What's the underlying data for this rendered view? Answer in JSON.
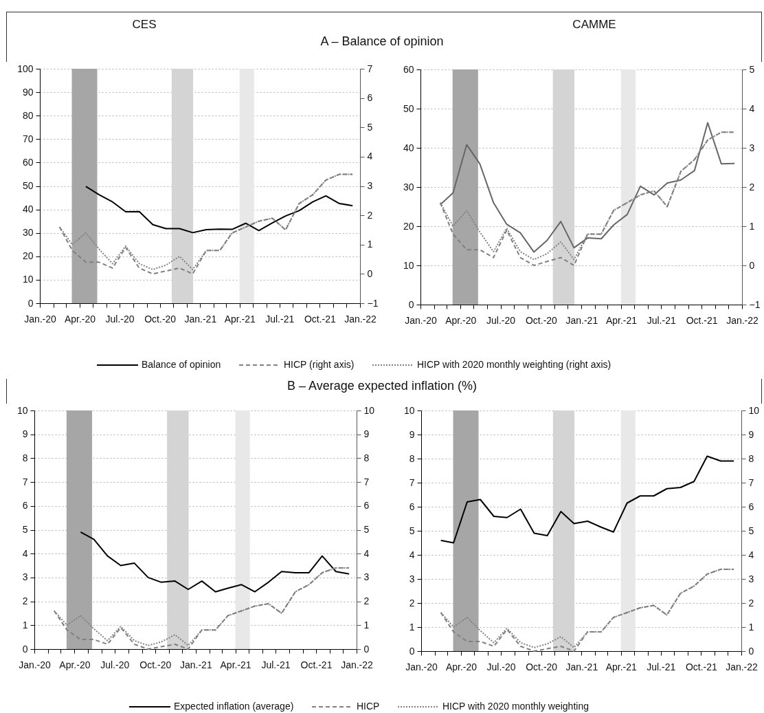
{
  "chart_data": [
    {
      "type": "line",
      "title": "CES",
      "subtitle": "A – Balance of opinion",
      "legend": "bottom",
      "grid": "y",
      "x": [
        "2020-02-15",
        "2020-03-15",
        "2020-04-15",
        "2020-05-15",
        "2020-06-15",
        "2020-07-15",
        "2020-08-15",
        "2020-09-15",
        "2020-10-15",
        "2020-11-15",
        "2020-12-15",
        "2021-01-15",
        "2021-02-15",
        "2021-03-15",
        "2021-04-15",
        "2021-05-15",
        "2021-06-15",
        "2021-07-15",
        "2021-08-15",
        "2021-09-15",
        "2021-10-15",
        "2021-11-15",
        "2021-12-15"
      ],
      "xlim": [
        "2020-01-01",
        "2022-01-01"
      ],
      "xticks": [
        {
          "value": "2020-01-01",
          "label": "Jan.-20"
        },
        {
          "value": "2020-02-01",
          "label": null
        },
        {
          "value": "2020-03-01",
          "label": null
        },
        {
          "value": "2020-04-01",
          "label": "Apr.-20"
        },
        {
          "value": "2020-05-01",
          "label": null
        },
        {
          "value": "2020-06-01",
          "label": null
        },
        {
          "value": "2020-07-01",
          "label": "Jul.-20"
        },
        {
          "value": "2020-08-01",
          "label": null
        },
        {
          "value": "2020-09-01",
          "label": null
        },
        {
          "value": "2020-10-01",
          "label": "Oct.-20"
        },
        {
          "value": "2020-11-01",
          "label": null
        },
        {
          "value": "2020-12-01",
          "label": null
        },
        {
          "value": "2021-01-01",
          "label": "Jan.-21"
        },
        {
          "value": "2021-02-01",
          "label": null
        },
        {
          "value": "2021-03-01",
          "label": null
        },
        {
          "value": "2021-04-01",
          "label": "Apr.-21"
        },
        {
          "value": "2021-05-01",
          "label": null
        },
        {
          "value": "2021-06-01",
          "label": null
        },
        {
          "value": "2021-07-01",
          "label": "Jul.-21"
        },
        {
          "value": "2021-08-01",
          "label": null
        },
        {
          "value": "2021-09-01",
          "label": null
        },
        {
          "value": "2021-10-01",
          "label": "Oct.-21"
        },
        {
          "value": "2021-11-01",
          "label": null
        },
        {
          "value": "2021-12-01",
          "label": null
        },
        {
          "value": "2022-01-01",
          "label": "Jan.-22"
        }
      ],
      "ylim": [
        0,
        100
      ],
      "yticks": [
        0,
        10,
        20,
        30,
        40,
        50,
        60,
        70,
        80,
        90,
        100
      ],
      "y2lim": [
        -1,
        7
      ],
      "y2ticks": [
        -1,
        0,
        1,
        2,
        3,
        4,
        5,
        6,
        7
      ],
      "bands": [
        {
          "axis": "x",
          "from": "2020-03-14",
          "to": "2020-05-11",
          "color": "#a6a6a6"
        },
        {
          "axis": "x",
          "from": "2020-10-28",
          "to": "2020-12-16",
          "color": "#d4d4d4"
        },
        {
          "axis": "x",
          "from": "2021-04-01",
          "to": "2021-05-04",
          "color": "#e8e8e8"
        }
      ],
      "series": [
        {
          "name": "Balance of opinion",
          "color": "#000000",
          "line_style": "solid",
          "values": [
            null,
            null,
            49.8,
            46.3,
            43.2,
            39.0,
            39.1,
            33.5,
            31.8,
            31.8,
            30.1,
            31.4,
            31.6,
            31.5,
            34.1,
            31.0,
            34.3,
            37.2,
            39.5,
            43.2,
            45.8,
            42.5,
            41.6
          ]
        },
        {
          "name": "HICP (right axis)",
          "color": "#7f7f7f",
          "line_style": "dashed",
          "axis": "y2",
          "values": [
            1.6,
            0.8,
            0.4,
            0.4,
            0.2,
            0.9,
            0.2,
            0.0,
            0.1,
            0.2,
            0.0,
            0.8,
            0.8,
            1.4,
            1.6,
            1.8,
            1.9,
            1.5,
            2.4,
            2.7,
            3.2,
            3.4,
            3.4
          ]
        },
        {
          "name": "HICP with 2020 monthly weighting (right axis)",
          "color": "#808080",
          "line_style": "dotted",
          "axis": "y2",
          "values": [
            1.6,
            1.0,
            1.4,
            0.85,
            0.35,
            0.95,
            0.35,
            0.15,
            0.3,
            0.6,
            0.15,
            0.8,
            0.8,
            1.4,
            1.6,
            1.8,
            1.9,
            1.5,
            2.4,
            2.7,
            3.2,
            3.4,
            3.4
          ]
        }
      ]
    },
    {
      "type": "line",
      "title": "CAMME",
      "grid": "y",
      "x": [
        "2020-02-15",
        "2020-03-15",
        "2020-04-15",
        "2020-05-15",
        "2020-06-15",
        "2020-07-15",
        "2020-08-15",
        "2020-09-15",
        "2020-10-15",
        "2020-11-15",
        "2020-12-15",
        "2021-01-15",
        "2021-02-15",
        "2021-03-15",
        "2021-04-15",
        "2021-05-15",
        "2021-06-15",
        "2021-07-15",
        "2021-08-15",
        "2021-09-15",
        "2021-10-15",
        "2021-11-15",
        "2021-12-15"
      ],
      "xlim": [
        "2020-01-01",
        "2022-01-01"
      ],
      "xticks": [
        {
          "value": "2020-01-01",
          "label": "Jan.-20"
        },
        {
          "value": "2020-02-01",
          "label": null
        },
        {
          "value": "2020-03-01",
          "label": null
        },
        {
          "value": "2020-04-01",
          "label": "Apr.-20"
        },
        {
          "value": "2020-05-01",
          "label": null
        },
        {
          "value": "2020-06-01",
          "label": null
        },
        {
          "value": "2020-07-01",
          "label": "Jul.-20"
        },
        {
          "value": "2020-08-01",
          "label": null
        },
        {
          "value": "2020-09-01",
          "label": null
        },
        {
          "value": "2020-10-01",
          "label": "Oct.-20"
        },
        {
          "value": "2020-11-01",
          "label": null
        },
        {
          "value": "2020-12-01",
          "label": null
        },
        {
          "value": "2021-01-01",
          "label": "Jan.-21"
        },
        {
          "value": "2021-02-01",
          "label": null
        },
        {
          "value": "2021-03-01",
          "label": null
        },
        {
          "value": "2021-04-01",
          "label": "Apr.-21"
        },
        {
          "value": "2021-05-01",
          "label": null
        },
        {
          "value": "2021-06-01",
          "label": null
        },
        {
          "value": "2021-07-01",
          "label": "Jul.-21"
        },
        {
          "value": "2021-08-01",
          "label": null
        },
        {
          "value": "2021-09-01",
          "label": null
        },
        {
          "value": "2021-10-01",
          "label": "Oct.-21"
        },
        {
          "value": "2021-11-01",
          "label": null
        },
        {
          "value": "2021-12-01",
          "label": null
        },
        {
          "value": "2022-01-01",
          "label": "Jan.-22"
        }
      ],
      "ylim": [
        0,
        60
      ],
      "yticks": [
        0,
        10,
        20,
        30,
        40,
        50,
        60
      ],
      "y2lim": [
        -1,
        5
      ],
      "y2ticks": [
        -1,
        0,
        1,
        2,
        3,
        4,
        5
      ],
      "bands": [
        {
          "axis": "x",
          "from": "2020-03-14",
          "to": "2020-05-11",
          "color": "#a6a6a6"
        },
        {
          "axis": "x",
          "from": "2020-10-28",
          "to": "2020-12-16",
          "color": "#d4d4d4"
        },
        {
          "axis": "x",
          "from": "2021-04-01",
          "to": "2021-05-04",
          "color": "#e8e8e8"
        }
      ],
      "series": [
        {
          "color": "#666666",
          "line_style": "solid",
          "values": [
            25.5,
            28.5,
            40.8,
            35.9,
            26.0,
            20.5,
            18.3,
            13.4,
            16.4,
            21.2,
            14.5,
            17.0,
            16.8,
            20.3,
            23.0,
            30.2,
            28.0,
            31.0,
            31.8,
            34.2,
            46.4,
            35.9,
            36.0
          ]
        },
        {
          "color": "#7f7f7f",
          "line_style": "dashed",
          "axis": "y2",
          "values": [
            1.6,
            0.8,
            0.4,
            0.4,
            0.2,
            0.9,
            0.2,
            0.0,
            0.1,
            0.2,
            0.0,
            0.8,
            0.8,
            1.4,
            1.6,
            1.8,
            1.9,
            1.5,
            2.4,
            2.7,
            3.2,
            3.4,
            3.4
          ]
        },
        {
          "color": "#808080",
          "line_style": "dotted",
          "axis": "y2",
          "values": [
            1.6,
            1.0,
            1.4,
            0.85,
            0.35,
            0.95,
            0.35,
            0.15,
            0.3,
            0.6,
            0.15,
            0.8,
            0.8,
            1.4,
            1.6,
            1.8,
            1.9,
            1.5,
            2.4,
            2.7,
            3.2,
            3.4,
            3.4
          ]
        }
      ]
    },
    {
      "type": "line",
      "subtitle": "B – Average expected inflation (%)",
      "legend": "bottom",
      "grid": "y",
      "x": [
        "2020-02-15",
        "2020-03-15",
        "2020-04-15",
        "2020-05-15",
        "2020-06-15",
        "2020-07-15",
        "2020-08-15",
        "2020-09-15",
        "2020-10-15",
        "2020-11-15",
        "2020-12-15",
        "2021-01-15",
        "2021-02-15",
        "2021-03-15",
        "2021-04-15",
        "2021-05-15",
        "2021-06-15",
        "2021-07-15",
        "2021-08-15",
        "2021-09-15",
        "2021-10-15",
        "2021-11-15",
        "2021-12-15"
      ],
      "xlim": [
        "2020-01-01",
        "2022-01-01"
      ],
      "xticks": [
        {
          "value": "2020-01-01",
          "label": "Jan.-20"
        },
        {
          "value": "2020-02-01",
          "label": null
        },
        {
          "value": "2020-03-01",
          "label": null
        },
        {
          "value": "2020-04-01",
          "label": "Apr.-20"
        },
        {
          "value": "2020-05-01",
          "label": null
        },
        {
          "value": "2020-06-01",
          "label": null
        },
        {
          "value": "2020-07-01",
          "label": "Jul.-20"
        },
        {
          "value": "2020-08-01",
          "label": null
        },
        {
          "value": "2020-09-01",
          "label": null
        },
        {
          "value": "2020-10-01",
          "label": "Oct.-20"
        },
        {
          "value": "2020-11-01",
          "label": null
        },
        {
          "value": "2020-12-01",
          "label": null
        },
        {
          "value": "2021-01-01",
          "label": "Jan.-21"
        },
        {
          "value": "2021-02-01",
          "label": null
        },
        {
          "value": "2021-03-01",
          "label": null
        },
        {
          "value": "2021-04-01",
          "label": "Apr.-21"
        },
        {
          "value": "2021-05-01",
          "label": null
        },
        {
          "value": "2021-06-01",
          "label": null
        },
        {
          "value": "2021-07-01",
          "label": "Jul.-21"
        },
        {
          "value": "2021-08-01",
          "label": null
        },
        {
          "value": "2021-09-01",
          "label": null
        },
        {
          "value": "2021-10-01",
          "label": "Oct.-21"
        },
        {
          "value": "2021-11-01",
          "label": null
        },
        {
          "value": "2021-12-01",
          "label": null
        },
        {
          "value": "2022-01-01",
          "label": "Jan.-22"
        }
      ],
      "ylim": [
        0,
        10
      ],
      "yticks": [
        0,
        1,
        2,
        3,
        4,
        5,
        6,
        7,
        8,
        9,
        10
      ],
      "y2lim": [
        0,
        10
      ],
      "y2ticks": [
        0,
        1,
        2,
        3,
        4,
        5,
        6,
        7,
        8,
        9,
        10
      ],
      "bands": [
        {
          "axis": "x",
          "from": "2020-03-14",
          "to": "2020-05-11",
          "color": "#a6a6a6"
        },
        {
          "axis": "x",
          "from": "2020-10-28",
          "to": "2020-12-16",
          "color": "#d4d4d4"
        },
        {
          "axis": "x",
          "from": "2021-04-01",
          "to": "2021-05-04",
          "color": "#e8e8e8"
        }
      ],
      "series": [
        {
          "name": "Expected inflation (average)",
          "color": "#000000",
          "line_style": "solid",
          "values": [
            null,
            null,
            4.9,
            4.6,
            3.9,
            3.5,
            3.6,
            3.0,
            2.8,
            2.85,
            2.5,
            2.85,
            2.4,
            2.55,
            2.7,
            2.4,
            2.8,
            3.25,
            3.2,
            3.2,
            3.9,
            3.25,
            3.15
          ]
        },
        {
          "name": "HICP",
          "color": "#7f7f7f",
          "line_style": "dashed",
          "axis": "y2",
          "values": [
            1.6,
            0.8,
            0.4,
            0.4,
            0.2,
            0.9,
            0.2,
            0.0,
            0.1,
            0.2,
            0.0,
            0.8,
            0.8,
            1.4,
            1.6,
            1.8,
            1.9,
            1.5,
            2.4,
            2.7,
            3.2,
            3.4,
            3.4
          ]
        },
        {
          "name": "HICP with 2020 monthly weighting",
          "color": "#808080",
          "line_style": "dotted",
          "axis": "y2",
          "values": [
            1.6,
            1.0,
            1.4,
            0.85,
            0.35,
            0.95,
            0.35,
            0.15,
            0.3,
            0.6,
            0.15,
            0.8,
            0.8,
            1.4,
            1.6,
            1.8,
            1.9,
            1.5,
            2.4,
            2.7,
            3.2,
            3.4,
            3.4
          ]
        }
      ]
    },
    {
      "type": "line",
      "grid": "y",
      "x": [
        "2020-02-15",
        "2020-03-15",
        "2020-04-15",
        "2020-05-15",
        "2020-06-15",
        "2020-07-15",
        "2020-08-15",
        "2020-09-15",
        "2020-10-15",
        "2020-11-15",
        "2020-12-15",
        "2021-01-15",
        "2021-02-15",
        "2021-03-15",
        "2021-04-15",
        "2021-05-15",
        "2021-06-15",
        "2021-07-15",
        "2021-08-15",
        "2021-09-15",
        "2021-10-15",
        "2021-11-15",
        "2021-12-15"
      ],
      "xlim": [
        "2020-01-01",
        "2022-01-01"
      ],
      "xticks": [
        {
          "value": "2020-01-01",
          "label": "Jan.-20"
        },
        {
          "value": "2020-02-01",
          "label": null
        },
        {
          "value": "2020-03-01",
          "label": null
        },
        {
          "value": "2020-04-01",
          "label": "Apr.-20"
        },
        {
          "value": "2020-05-01",
          "label": null
        },
        {
          "value": "2020-06-01",
          "label": null
        },
        {
          "value": "2020-07-01",
          "label": "Jul.-20"
        },
        {
          "value": "2020-08-01",
          "label": null
        },
        {
          "value": "2020-09-01",
          "label": null
        },
        {
          "value": "2020-10-01",
          "label": "Oct.-20"
        },
        {
          "value": "2020-11-01",
          "label": null
        },
        {
          "value": "2020-12-01",
          "label": null
        },
        {
          "value": "2021-01-01",
          "label": "Jan.-21"
        },
        {
          "value": "2021-02-01",
          "label": null
        },
        {
          "value": "2021-03-01",
          "label": null
        },
        {
          "value": "2021-04-01",
          "label": "Apr.-21"
        },
        {
          "value": "2021-05-01",
          "label": null
        },
        {
          "value": "2021-06-01",
          "label": null
        },
        {
          "value": "2021-07-01",
          "label": "Jul.-21"
        },
        {
          "value": "2021-08-01",
          "label": null
        },
        {
          "value": "2021-09-01",
          "label": null
        },
        {
          "value": "2021-10-01",
          "label": "Oct.-21"
        },
        {
          "value": "2021-11-01",
          "label": null
        },
        {
          "value": "2021-12-01",
          "label": null
        },
        {
          "value": "2022-01-01",
          "label": "Jan.-22"
        }
      ],
      "ylim": [
        0,
        10
      ],
      "yticks": [
        0,
        1,
        2,
        3,
        4,
        5,
        6,
        7,
        8,
        9,
        10
      ],
      "y2lim": [
        0,
        10
      ],
      "y2ticks": [
        0,
        1,
        2,
        3,
        4,
        5,
        6,
        7,
        8,
        9,
        10
      ],
      "bands": [
        {
          "axis": "x",
          "from": "2020-03-14",
          "to": "2020-05-11",
          "color": "#a6a6a6"
        },
        {
          "axis": "x",
          "from": "2020-10-28",
          "to": "2020-12-16",
          "color": "#d4d4d4"
        },
        {
          "axis": "x",
          "from": "2021-04-01",
          "to": "2021-05-04",
          "color": "#e8e8e8"
        }
      ],
      "series": [
        {
          "color": "#000000",
          "line_style": "solid",
          "values": [
            4.6,
            4.5,
            6.2,
            6.3,
            5.6,
            5.55,
            5.9,
            4.9,
            4.8,
            5.8,
            5.3,
            5.4,
            5.15,
            4.95,
            6.15,
            6.45,
            6.45,
            6.75,
            6.8,
            7.05,
            8.1,
            7.9,
            7.9
          ]
        },
        {
          "color": "#7f7f7f",
          "line_style": "dashed",
          "axis": "y2",
          "values": [
            1.6,
            0.8,
            0.4,
            0.4,
            0.2,
            0.9,
            0.2,
            0.0,
            0.1,
            0.2,
            0.0,
            0.8,
            0.8,
            1.4,
            1.6,
            1.8,
            1.9,
            1.5,
            2.4,
            2.7,
            3.2,
            3.4,
            3.4
          ]
        },
        {
          "color": "#808080",
          "line_style": "dotted",
          "axis": "y2",
          "values": [
            1.6,
            1.0,
            1.4,
            0.85,
            0.35,
            0.95,
            0.35,
            0.15,
            0.3,
            0.6,
            0.15,
            0.8,
            0.8,
            1.4,
            1.6,
            1.8,
            1.9,
            1.5,
            2.4,
            2.7,
            3.2,
            3.4,
            3.4
          ]
        }
      ]
    }
  ]
}
